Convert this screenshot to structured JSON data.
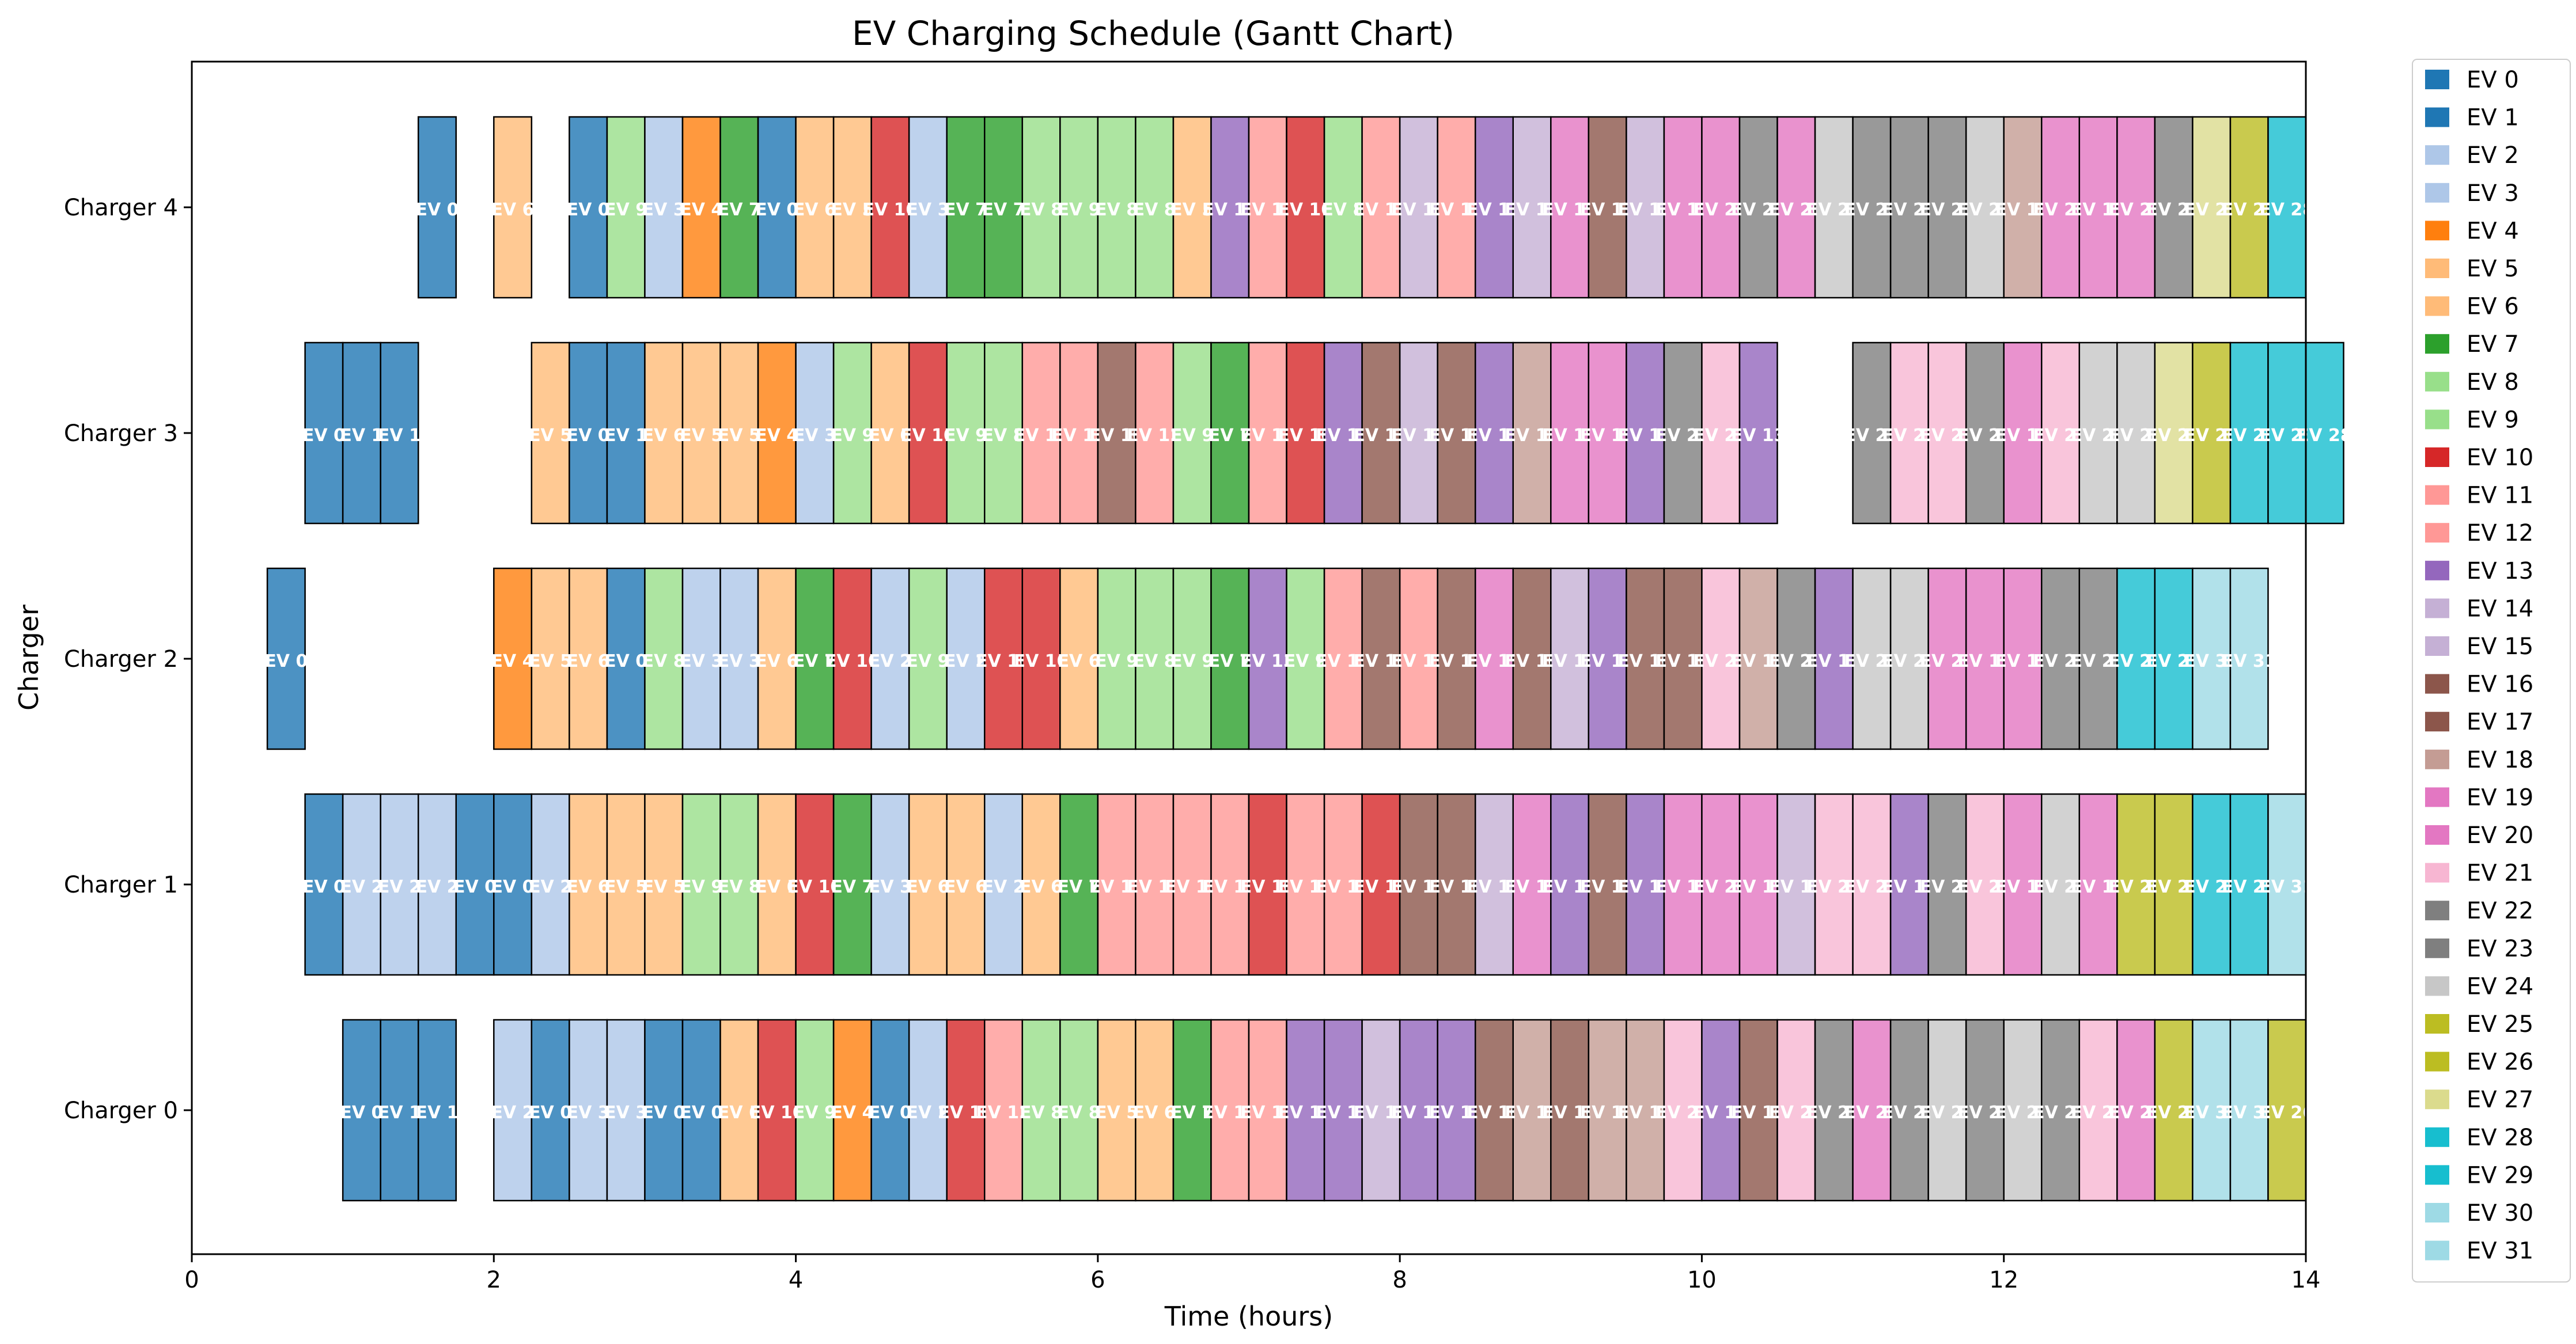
{
  "chart_data": {
    "type": "gantt",
    "title": "EV Charging Schedule (Gantt Chart)",
    "xlabel": "Time (hours)",
    "ylabel": "Charger",
    "xlim": [
      0,
      14
    ],
    "x_ticks": [
      0,
      2,
      4,
      6,
      8,
      10,
      12,
      14
    ],
    "categories": [
      "Charger 0",
      "Charger 1",
      "Charger 2",
      "Charger 3",
      "Charger 4"
    ],
    "grid": false,
    "legend_position": "outside-right",
    "slot_hours": 0.25,
    "legend": [
      {
        "label": "EV 0",
        "color": "#1f77b4"
      },
      {
        "label": "EV 1",
        "color": "#1f77b4"
      },
      {
        "label": "EV 2",
        "color": "#aec7e8"
      },
      {
        "label": "EV 3",
        "color": "#aec7e8"
      },
      {
        "label": "EV 4",
        "color": "#ff7f0e"
      },
      {
        "label": "EV 5",
        "color": "#ffbb78"
      },
      {
        "label": "EV 6",
        "color": "#ffbb78"
      },
      {
        "label": "EV 7",
        "color": "#2ca02c"
      },
      {
        "label": "EV 8",
        "color": "#98df8a"
      },
      {
        "label": "EV 9",
        "color": "#98df8a"
      },
      {
        "label": "EV 10",
        "color": "#d62728"
      },
      {
        "label": "EV 11",
        "color": "#ff9896"
      },
      {
        "label": "EV 12",
        "color": "#ff9896"
      },
      {
        "label": "EV 13",
        "color": "#9467bd"
      },
      {
        "label": "EV 14",
        "color": "#c5b0d5"
      },
      {
        "label": "EV 15",
        "color": "#c5b0d5"
      },
      {
        "label": "EV 16",
        "color": "#8c564b"
      },
      {
        "label": "EV 17",
        "color": "#8c564b"
      },
      {
        "label": "EV 18",
        "color": "#c49c94"
      },
      {
        "label": "EV 19",
        "color": "#e377c2"
      },
      {
        "label": "EV 20",
        "color": "#e377c2"
      },
      {
        "label": "EV 21",
        "color": "#f7b6d2"
      },
      {
        "label": "EV 22",
        "color": "#7f7f7f"
      },
      {
        "label": "EV 23",
        "color": "#7f7f7f"
      },
      {
        "label": "EV 24",
        "color": "#c7c7c7"
      },
      {
        "label": "EV 25",
        "color": "#bcbd22"
      },
      {
        "label": "EV 26",
        "color": "#bcbd22"
      },
      {
        "label": "EV 27",
        "color": "#dbdb8d"
      },
      {
        "label": "EV 28",
        "color": "#17becf"
      },
      {
        "label": "EV 29",
        "color": "#17becf"
      },
      {
        "label": "EV 30",
        "color": "#9edae5"
      },
      {
        "label": "EV 31",
        "color": "#9edae5"
      }
    ],
    "rows": [
      {
        "charger": "Charger 0",
        "segments": [
          {
            "start": 1.0,
            "evs": [
              0,
              1,
              1
            ]
          },
          {
            "start": 2.0,
            "evs": [
              2,
              0,
              3,
              3,
              0,
              0,
              6,
              10,
              9,
              4,
              0,
              2,
              10,
              12,
              8,
              8,
              5,
              6,
              7,
              12,
              11,
              13,
              13,
              14,
              13,
              13,
              16,
              18,
              16,
              18,
              18,
              21,
              13,
              16,
              21,
              22,
              20,
              22,
              24,
              22,
              24,
              22,
              21,
              20,
              26,
              30,
              30,
              26
            ]
          }
        ]
      },
      {
        "charger": "Charger 1",
        "segments": [
          {
            "start": 0.75,
            "evs": [
              0,
              2,
              2,
              2,
              0,
              0,
              2,
              6,
              5,
              5,
              9,
              8,
              6,
              10,
              7,
              3,
              6,
              6,
              2,
              6,
              7,
              11,
              11,
              12,
              12,
              10,
              11,
              12,
              10,
              17,
              16,
              15,
              19,
              13,
              17,
              13,
              19,
              20,
              19,
              15,
              21,
              21,
              13,
              22,
              21,
              19,
              24,
              19,
              26,
              25,
              28,
              29,
              31
            ]
          }
        ]
      },
      {
        "charger": "Charger 2",
        "segments": [
          {
            "start": 0.5,
            "evs": [
              0
            ]
          },
          {
            "start": 2.0,
            "evs": [
              4,
              5,
              6,
              0,
              8,
              3,
              3,
              6,
              7,
              10,
              2,
              9,
              2,
              10,
              10,
              6,
              9,
              8,
              9,
              7,
              13,
              9,
              12,
              16,
              12,
              17,
              19,
              16,
              14,
              13,
              16,
              16,
              21,
              18,
              22,
              13,
              24,
              24,
              20,
              19,
              19,
              23,
              23,
              28,
              29,
              30,
              31
            ]
          }
        ]
      },
      {
        "charger": "Charger 3",
        "segments": [
          {
            "start": 0.75,
            "evs": [
              0,
              1,
              1
            ]
          },
          {
            "start": 2.25,
            "evs": [
              5,
              0,
              1,
              6,
              5,
              5,
              4,
              3,
              9,
              6,
              10,
              9,
              8,
              11,
              12,
              16,
              12,
              9,
              7,
              12,
              10,
              13,
              17,
              15,
              16,
              13,
              18,
              19,
              19,
              13,
              22,
              21,
              13
            ]
          },
          {
            "start": 11.0,
            "evs": [
              22,
              21,
              21,
              22,
              19,
              21,
              24,
              24,
              27,
              26,
              28,
              29,
              28
            ]
          }
        ]
      },
      {
        "charger": "Charger 4",
        "segments": [
          {
            "start": 1.5,
            "evs": [
              0
            ]
          },
          {
            "start": 2.0,
            "evs": [
              6
            ]
          },
          {
            "start": 2.5,
            "evs": [
              0,
              9,
              3,
              4,
              7,
              0,
              6,
              5,
              10,
              3,
              7,
              7,
              8,
              9,
              8,
              8,
              5,
              13,
              11,
              10,
              8,
              11,
              14,
              12,
              13,
              15,
              19,
              17,
              14,
              19,
              20,
              23,
              20,
              24,
              22,
              22,
              23,
              24,
              18,
              20,
              19,
              20,
              23,
              27,
              25,
              28
            ]
          }
        ]
      }
    ]
  }
}
